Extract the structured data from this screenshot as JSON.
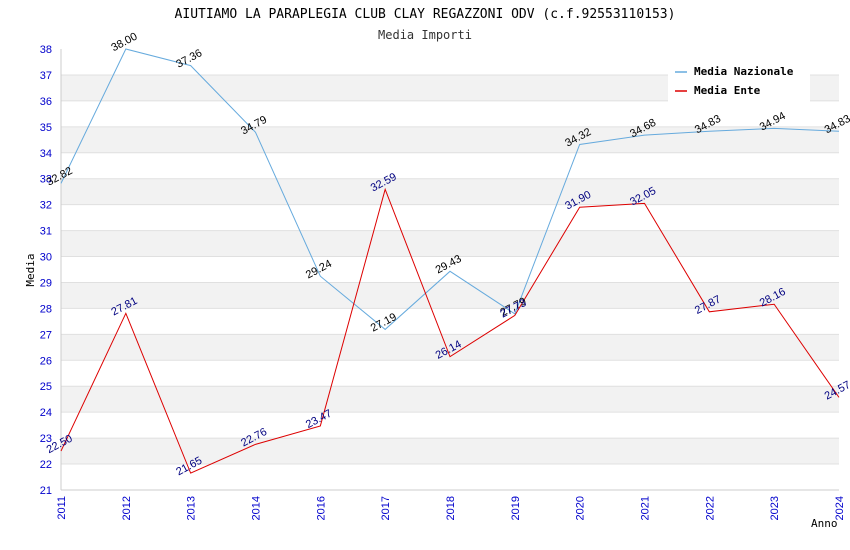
{
  "chart_data": {
    "type": "line",
    "title": "AIUTIAMO LA PARAPLEGIA CLUB CLAY REGAZZONI ODV (c.f.92553110153)",
    "subtitle": "Media Importi",
    "xlabel": "Anno",
    "ylabel": "Media",
    "ylim": [
      21,
      38
    ],
    "yticks": [
      "21",
      "22",
      "23",
      "24",
      "25",
      "26",
      "27",
      "28",
      "29",
      "30",
      "31",
      "32",
      "33",
      "34",
      "35",
      "36",
      "37",
      "38"
    ],
    "categories": [
      "2011",
      "2012",
      "2013",
      "2014",
      "2016",
      "2017",
      "2018",
      "2019",
      "2020",
      "2021",
      "2022",
      "2023",
      "2024"
    ],
    "grid": "horizontal alternating bands",
    "legend_position": "top-right",
    "series": [
      {
        "name": "Media Nazionale",
        "color": "#66aadd",
        "values": [
          32.82,
          38.0,
          37.36,
          34.79,
          29.24,
          27.19,
          29.43,
          27.79,
          34.32,
          34.68,
          34.83,
          34.94,
          34.83
        ],
        "labels": [
          "32.82",
          "38.00",
          "37.36",
          "34.79",
          "29.24",
          "27.19",
          "29.43",
          "27.79",
          "34.32",
          "34.68",
          "34.83",
          "34.94",
          "34.83"
        ]
      },
      {
        "name": "Media Ente",
        "color": "#dd0000",
        "values": [
          22.5,
          27.81,
          21.65,
          22.76,
          23.47,
          32.59,
          26.14,
          27.73,
          31.9,
          32.05,
          27.87,
          28.16,
          24.57
        ],
        "labels": [
          "22.50",
          "27.81",
          "21.65",
          "22.76",
          "23.47",
          "32.59",
          "26.14",
          "27.73",
          "31.90",
          "32.05",
          "27.87",
          "28.16",
          "24.57"
        ]
      }
    ]
  }
}
